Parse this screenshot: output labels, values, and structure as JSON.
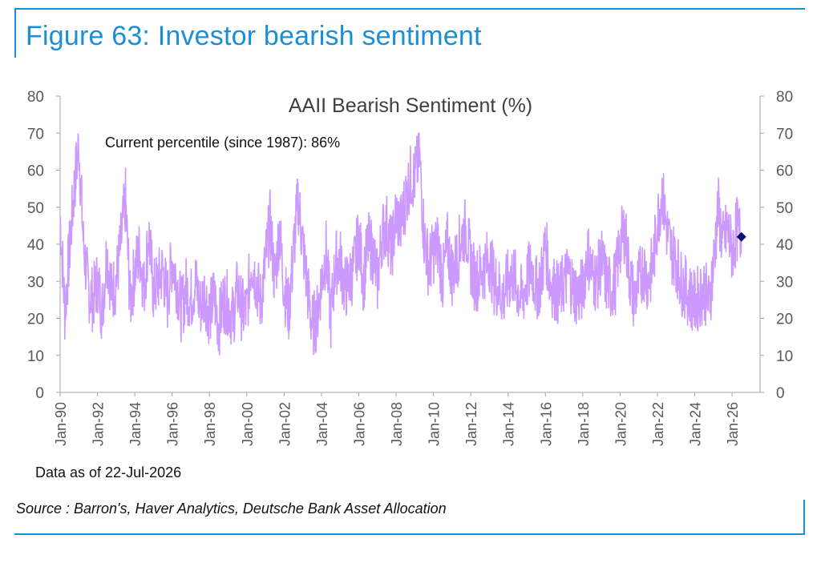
{
  "figure": {
    "title": "Figure 63: Investor bearish sentiment",
    "data_as_of": "Data as of 22-Jul-2026",
    "source": "Source : Barron's, Haver Analytics, Deutsche Bank Asset Allocation"
  },
  "colors": {
    "accent": "#1b8fd6",
    "series": "#cc99ff",
    "marker": "#0a0a78",
    "axis": "#a6a6a6",
    "tick_text": "#595959"
  },
  "chart_data": {
    "type": "line",
    "title": "AAII Bearish Sentiment (%)",
    "annotation": "Current percentile (since 1987): 86%",
    "ylim": [
      0,
      80
    ],
    "yticks": [
      0,
      10,
      20,
      30,
      40,
      50,
      60,
      70,
      80
    ],
    "right_axis_mirror": true,
    "grid": false,
    "legend": "none",
    "x_tick_labels": [
      "Jan-90",
      "Jan-92",
      "Jan-94",
      "Jan-96",
      "Jan-98",
      "Jan-00",
      "Jan-02",
      "Jan-04",
      "Jan-06",
      "Jan-08",
      "Jan-10",
      "Jan-12",
      "Jan-14",
      "Jan-16",
      "Jan-18",
      "Jan-20",
      "Jan-22",
      "Jan-24",
      "Jan-26"
    ],
    "xlim": [
      "1990-01",
      "2027-07"
    ],
    "series": [
      {
        "values_frequency": "quarterly",
        "x": [
          "1990-01",
          "1990-04",
          "1990-07",
          "1990-10",
          "1991-01",
          "1991-04",
          "1991-07",
          "1991-10",
          "1992-01",
          "1992-04",
          "1992-07",
          "1992-10",
          "1993-01",
          "1993-04",
          "1993-07",
          "1993-10",
          "1994-01",
          "1994-04",
          "1994-07",
          "1994-10",
          "1995-01",
          "1995-04",
          "1995-07",
          "1995-10",
          "1996-01",
          "1996-04",
          "1996-07",
          "1996-10",
          "1997-01",
          "1997-04",
          "1997-07",
          "1997-10",
          "1998-01",
          "1998-04",
          "1998-07",
          "1998-10",
          "1999-01",
          "1999-04",
          "1999-07",
          "1999-10",
          "2000-01",
          "2000-04",
          "2000-07",
          "2000-10",
          "2001-01",
          "2001-04",
          "2001-07",
          "2001-10",
          "2002-01",
          "2002-04",
          "2002-07",
          "2002-10",
          "2003-01",
          "2003-04",
          "2003-07",
          "2003-10",
          "2004-01",
          "2004-04",
          "2004-07",
          "2004-10",
          "2005-01",
          "2005-04",
          "2005-07",
          "2005-10",
          "2006-01",
          "2006-04",
          "2006-07",
          "2006-10",
          "2007-01",
          "2007-04",
          "2007-07",
          "2007-10",
          "2008-01",
          "2008-04",
          "2008-07",
          "2008-10",
          "2009-01",
          "2009-04",
          "2009-07",
          "2009-10",
          "2010-01",
          "2010-04",
          "2010-07",
          "2010-10",
          "2011-01",
          "2011-04",
          "2011-07",
          "2011-10",
          "2012-01",
          "2012-04",
          "2012-07",
          "2012-10",
          "2013-01",
          "2013-04",
          "2013-07",
          "2013-10",
          "2014-01",
          "2014-04",
          "2014-07",
          "2014-10",
          "2015-01",
          "2015-04",
          "2015-07",
          "2015-10",
          "2016-01",
          "2016-04",
          "2016-07",
          "2016-10",
          "2017-01",
          "2017-04",
          "2017-07",
          "2017-10",
          "2018-01",
          "2018-04",
          "2018-07",
          "2018-10",
          "2019-01",
          "2019-04",
          "2019-07",
          "2019-10",
          "2020-01",
          "2020-04",
          "2020-07",
          "2020-10",
          "2021-01",
          "2021-04",
          "2021-07",
          "2021-10",
          "2022-01",
          "2022-04",
          "2022-07",
          "2022-10",
          "2023-01",
          "2023-04",
          "2023-07",
          "2023-10",
          "2024-01",
          "2024-04",
          "2024-07",
          "2024-10",
          "2025-01",
          "2025-04",
          "2025-07",
          "2025-10",
          "2026-01",
          "2026-04",
          "2026-07"
        ],
        "y": [
          48,
          22,
          38,
          55,
          67,
          40,
          28,
          25,
          30,
          22,
          38,
          27,
          30,
          40,
          52,
          24,
          33,
          38,
          28,
          43,
          27,
          30,
          33,
          25,
          36,
          30,
          22,
          28,
          25,
          30,
          23,
          27,
          21,
          26,
          18,
          25,
          24,
          20,
          28,
          22,
          22,
          36,
          30,
          24,
          35,
          46,
          30,
          44,
          28,
          22,
          38,
          52,
          40,
          28,
          18,
          20,
          30,
          38,
          20,
          35,
          36,
          28,
          30,
          34,
          42,
          30,
          40,
          38,
          30,
          43,
          45,
          38,
          48,
          45,
          52,
          58,
          58,
          64,
          42,
          34,
          38,
          40,
          30,
          40,
          32,
          36,
          42,
          44,
          35,
          30,
          32,
          34,
          36,
          30,
          28,
          26,
          30,
          32,
          28,
          25,
          30,
          34,
          28,
          30,
          40,
          30,
          28,
          26,
          30,
          32,
          28,
          26,
          28,
          38,
          32,
          30,
          36,
          30,
          28,
          30,
          40,
          44,
          32,
          25,
          30,
          34,
          30,
          34,
          46,
          54,
          44,
          38,
          36,
          30,
          28,
          26,
          24,
          26,
          28,
          24,
          34,
          50,
          40,
          44,
          38,
          44,
          42
        ]
      }
    ],
    "last_point": {
      "x": "2026-07",
      "y": 42
    }
  }
}
